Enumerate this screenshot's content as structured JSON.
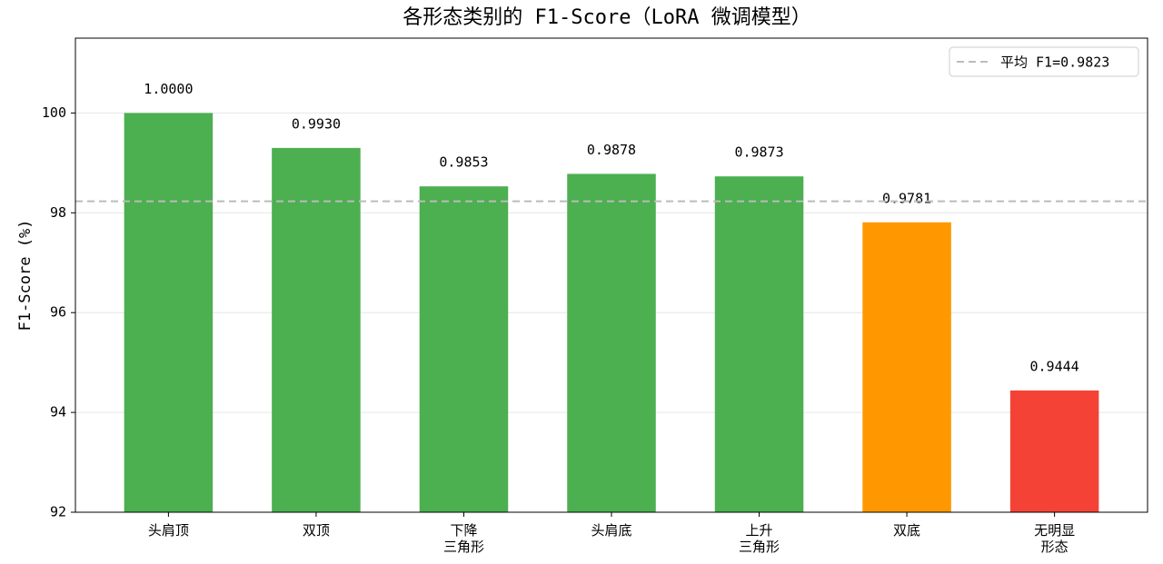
{
  "chart_data": {
    "type": "bar",
    "title": "各形态类别的 F1-Score（LoRA 微调模型）",
    "ylabel": "F1-Score (%)",
    "categories": [
      "头肩顶",
      "双顶",
      "下降\n三角形",
      "头肩底",
      "上升\n三角形",
      "双底",
      "无明显\n形态"
    ],
    "values": [
      100,
      99.3,
      98.53,
      98.78,
      98.73,
      97.81,
      94.44
    ],
    "value_labels": [
      "1.0000",
      "0.9930",
      "0.9853",
      "0.9878",
      "0.9873",
      "0.9781",
      "0.9444"
    ],
    "colors": [
      "#4caf50",
      "#4caf50",
      "#4caf50",
      "#4caf50",
      "#4caf50",
      "#ff9800",
      "#f44336"
    ],
    "ylim": [
      92,
      101.5
    ],
    "yticks": [
      92,
      94,
      96,
      98,
      100
    ],
    "grid": true,
    "mean_line": {
      "value": 98.23,
      "label": "平均 F1=0.9823",
      "color": "#bbbbbb"
    },
    "legend": "upper right"
  }
}
